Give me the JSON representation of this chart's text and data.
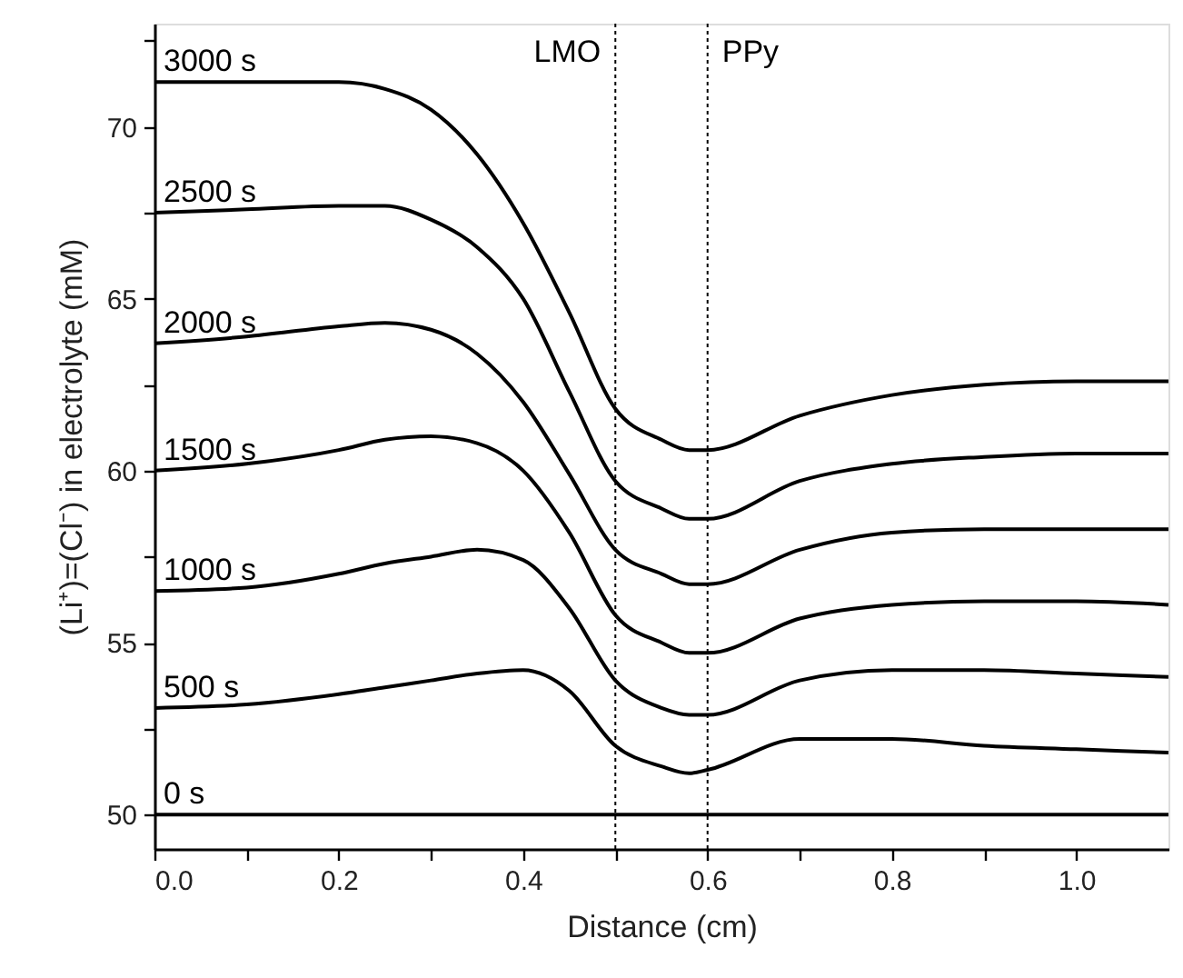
{
  "chart_data": {
    "type": "line",
    "xlabel": "Distance (cm)",
    "ylabel": "(Li⁺)=(Cl⁻) in electrolyte (mM)",
    "xlim": [
      0,
      1.1
    ],
    "ylim": [
      49,
      73
    ],
    "xticks": [
      {
        "value": 0,
        "label": "0.0"
      },
      {
        "value": 0.1,
        "label": null
      },
      {
        "value": 0.2,
        "label": "0.2"
      },
      {
        "value": 0.3,
        "label": null
      },
      {
        "value": 0.4,
        "label": "0.4"
      },
      {
        "value": 0.5,
        "label": null
      },
      {
        "value": 0.6,
        "label": "0.6"
      },
      {
        "value": 0.7,
        "label": null
      },
      {
        "value": 0.8,
        "label": "0.8"
      },
      {
        "value": 0.9,
        "label": null
      },
      {
        "value": 1.0,
        "label": "1.0"
      }
    ],
    "yticks": [
      50,
      {
        "value": 52.5,
        "label": null
      },
      55,
      {
        "value": 57.5,
        "label": null
      },
      60,
      {
        "value": 62.5,
        "label": null
      },
      65,
      {
        "value": 67.5,
        "label": null
      },
      70,
      {
        "value": 72.5,
        "label": null
      }
    ],
    "grid": false,
    "legend": "left",
    "marker": "none",
    "line_style": "solid",
    "x": [
      0,
      0.1,
      0.2,
      0.25,
      0.3,
      0.35,
      0.4,
      0.45,
      0.5,
      0.55,
      0.58,
      0.6,
      0.7,
      0.8,
      0.9,
      1.0,
      1.1
    ],
    "series": [
      {
        "name": "3000 s",
        "color": "#000000",
        "values": [
          71.3,
          71.3,
          71.3,
          71.1,
          70.5,
          69.2,
          67.2,
          64.6,
          61.8,
          60.9,
          60.6,
          60.6,
          61.6,
          62.2,
          62.5,
          62.6,
          62.6
        ]
      },
      {
        "name": "2500 s",
        "color": "#000000",
        "values": [
          67.5,
          67.6,
          67.7,
          67.7,
          67.3,
          66.5,
          65.0,
          62.3,
          59.7,
          58.9,
          58.6,
          58.6,
          59.7,
          60.2,
          60.4,
          60.5,
          60.5
        ]
      },
      {
        "name": "2000 s",
        "color": "#000000",
        "values": [
          63.7,
          63.9,
          64.2,
          64.3,
          64.1,
          63.4,
          62.0,
          59.9,
          57.7,
          57.0,
          56.7,
          56.7,
          57.7,
          58.2,
          58.3,
          58.3,
          58.3
        ]
      },
      {
        "name": "1500 s",
        "color": "#000000",
        "values": [
          60.0,
          60.2,
          60.6,
          60.9,
          61.0,
          60.8,
          60.0,
          58.2,
          55.8,
          55.0,
          54.7,
          54.7,
          55.7,
          56.1,
          56.2,
          56.2,
          56.1
        ]
      },
      {
        "name": "1000 s",
        "color": "#000000",
        "values": [
          56.5,
          56.6,
          57.0,
          57.3,
          57.5,
          57.7,
          57.4,
          56.0,
          53.9,
          53.1,
          52.9,
          52.9,
          53.9,
          54.2,
          54.2,
          54.1,
          54.0
        ]
      },
      {
        "name": "500 s",
        "color": "#000000",
        "values": [
          53.1,
          53.2,
          53.5,
          53.7,
          53.9,
          54.1,
          54.2,
          53.6,
          52.0,
          51.4,
          51.2,
          51.3,
          52.2,
          52.2,
          52.0,
          51.9,
          51.8
        ]
      },
      {
        "name": "0 s",
        "color": "#000000",
        "values": [
          50,
          50,
          50,
          50,
          50,
          50,
          50,
          50,
          50,
          50,
          50,
          50,
          50,
          50,
          50,
          50,
          50
        ]
      }
    ],
    "ref_lines": [
      {
        "axis": "x",
        "value": 0.5,
        "label": "LMO",
        "color": "#000000",
        "line_style": "dotted"
      },
      {
        "axis": "x",
        "value": 0.6,
        "label": "PPy",
        "color": "#000000",
        "line_style": "dotted"
      }
    ]
  }
}
